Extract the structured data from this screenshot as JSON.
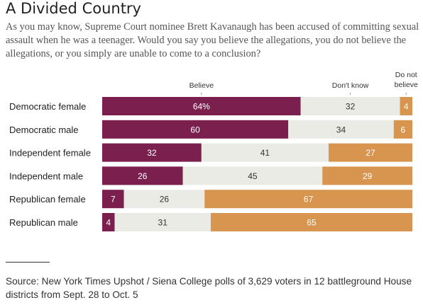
{
  "title": "A Divided Country",
  "subtitle": "As you may know, Supreme Court nominee Brett Kavanaugh has been accused of committing sexual assault when he was a teenager. Would you say you believe the allegations, you do not believe the allegations, or you simply are unable to come to a conclusion?",
  "source": "Source: New York Times Upshot / Siena College polls of 3,629 voters in 12 battleground House districts from Sept. 28 to Oct. 5",
  "chart_data": {
    "type": "bar",
    "stacked": true,
    "orientation": "horizontal",
    "unit": "%",
    "categories": [
      "Democratic female",
      "Democratic male",
      "Independent female",
      "Independent male",
      "Republican female",
      "Republican male"
    ],
    "series": [
      {
        "name": "Believe",
        "color": "#7b1f4f",
        "values": [
          64,
          60,
          32,
          26,
          7,
          4
        ],
        "labels": [
          "64%",
          "60",
          "32",
          "26",
          "7",
          "4"
        ]
      },
      {
        "name": "Don't know",
        "color": "#ebebe6",
        "values": [
          32,
          34,
          41,
          45,
          26,
          31
        ],
        "labels": [
          "32",
          "34",
          "41",
          "45",
          "26",
          "31"
        ]
      },
      {
        "name": "Do not believe",
        "color": "#d7954f",
        "values": [
          4,
          6,
          27,
          29,
          67,
          65
        ],
        "labels": [
          "4",
          "6",
          "27",
          "29",
          "67",
          "65"
        ]
      }
    ],
    "series_headers": [
      "Believe",
      "Don't know",
      "Do not believe"
    ],
    "xlim": [
      0,
      100
    ],
    "grid": false,
    "legend": "column headers above bars"
  }
}
